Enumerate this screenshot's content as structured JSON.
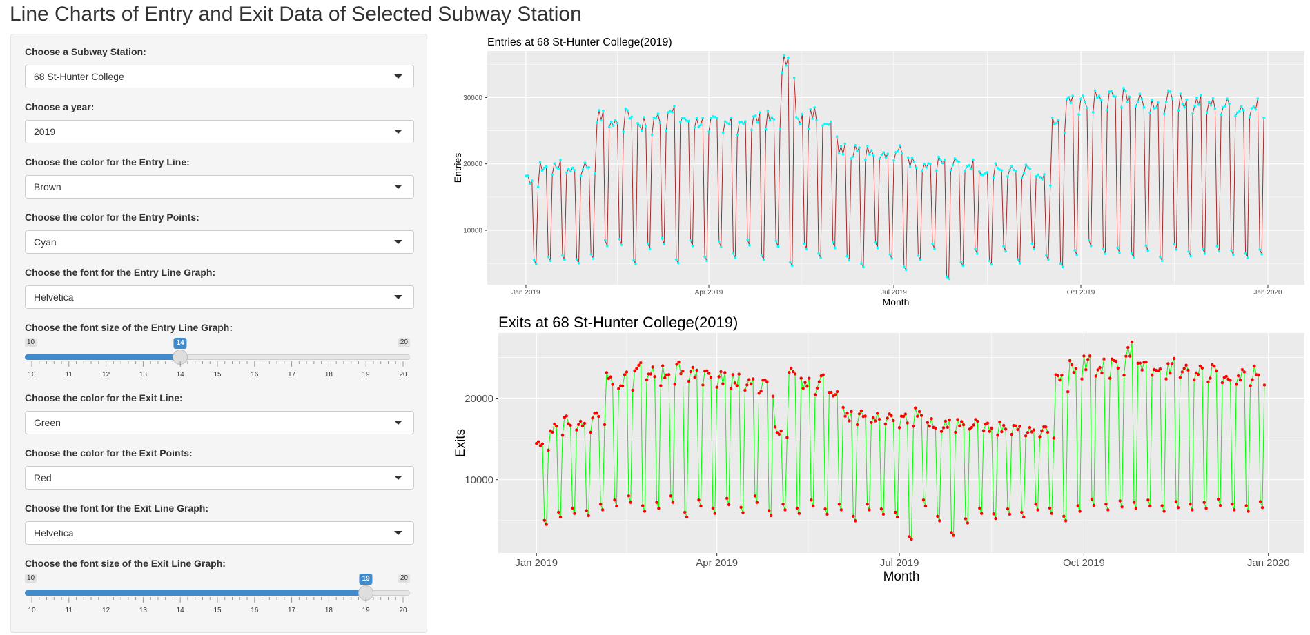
{
  "page": {
    "title": "Line Charts of Entry and Exit Data of Selected Subway Station"
  },
  "sidebar": {
    "station": {
      "label": "Choose a Subway Station:",
      "value": "68 St-Hunter College"
    },
    "year": {
      "label": "Choose a year:",
      "value": "2019"
    },
    "entry_line_color": {
      "label": "Choose the color for the Entry Line:",
      "value": "Brown"
    },
    "entry_points_color": {
      "label": "Choose the color for the Entry Points:",
      "value": "Cyan"
    },
    "entry_font": {
      "label": "Choose the font for the Entry Line Graph:",
      "value": "Helvetica"
    },
    "entry_font_size": {
      "label": "Choose the font size of the Entry Line Graph:",
      "min": 10,
      "max": 20,
      "value": 14
    },
    "exit_line_color": {
      "label": "Choose the color for the Exit Line:",
      "value": "Green"
    },
    "exit_points_color": {
      "label": "Choose the color for the Exit Points:",
      "value": "Red"
    },
    "exit_font": {
      "label": "Choose the font for the Exit Line Graph:",
      "value": "Helvetica"
    },
    "exit_font_size": {
      "label": "Choose the font size of the Exit Line Graph:",
      "min": 10,
      "max": 20,
      "value": 19
    }
  },
  "colors": {
    "slider_accent": "#428bca",
    "panel_background": "#ebebeb",
    "entry_line": "#a52a2a",
    "entry_points": "#00ffff",
    "exit_line": "#00ff00",
    "exit_points": "#ff0000"
  },
  "chart_data": [
    {
      "type": "line",
      "title": "Entries at 68 St-Hunter College(2019)",
      "xlabel": "Month",
      "ylabel": "Entries",
      "x_ticks": [
        "Jan 2019",
        "Apr 2019",
        "Jul 2019",
        "Oct 2019",
        "Jan 2020"
      ],
      "y_ticks": [
        10000,
        20000,
        30000
      ],
      "xlim": [
        "2018-12-13",
        "2020-01-19"
      ],
      "ylim": [
        1800,
        37000
      ],
      "grid": true,
      "series": [
        {
          "points": "pending",
          "summary_weekly": [
            {
              "week_of": "2019-01-01",
              "weekday": 18000,
              "weekend": 5500
            },
            {
              "week_of": "2019-01-08",
              "weekday": 20000,
              "weekend": 6000
            },
            {
              "week_of": "2019-01-15",
              "weekday": 20300,
              "weekend": 6200
            },
            {
              "week_of": "2019-01-22",
              "weekday": 19800,
              "weekend": 5600
            },
            {
              "week_of": "2019-01-29",
              "weekday": 20200,
              "weekend": 6400
            },
            {
              "week_of": "2019-02-05",
              "weekday": 27800,
              "weekend": 8500
            },
            {
              "week_of": "2019-02-12",
              "weekday": 27000,
              "weekend": 8700
            },
            {
              "week_of": "2019-02-19",
              "weekday": 28400,
              "weekend": 5500
            },
            {
              "week_of": "2019-02-26",
              "weekday": 26500,
              "weekend": 8000
            },
            {
              "week_of": "2019-03-05",
              "weekday": 27200,
              "weekend": 8800
            },
            {
              "week_of": "2019-03-12",
              "weekday": 28600,
              "weekend": 5600
            }
          ]
        }
      ]
    },
    {
      "type": "line",
      "title": "Exits at 68 St-Hunter College(2019)",
      "xlabel": "Month",
      "ylabel": "Exits",
      "x_ticks": [
        "Jan 2019",
        "Apr 2019",
        "Jul 2019",
        "Oct 2019",
        "Jan 2020"
      ],
      "y_ticks": [
        10000,
        20000
      ],
      "xlim": [
        "2018-12-13",
        "2020-01-19"
      ],
      "ylim": [
        1000,
        28000
      ],
      "grid": true
    }
  ]
}
